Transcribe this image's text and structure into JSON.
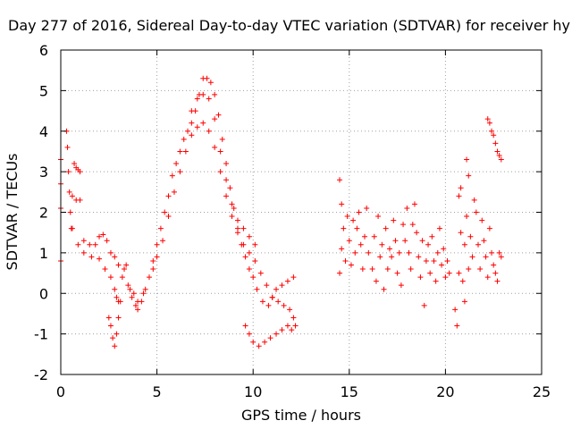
{
  "chart_data": {
    "type": "scatter",
    "title": "Day 277 of 2016, Sidereal Day-to-day VTEC variation (SDTVAR) for receiver hy",
    "xlabel": "GPS time / hours",
    "ylabel": "SDTVAR / TECUs",
    "xlim": [
      0,
      25
    ],
    "ylim": [
      -2,
      6
    ],
    "xticks": [
      "0",
      "5",
      "10",
      "15",
      "20",
      "25"
    ],
    "yticks": [
      "-2",
      "-1",
      "0",
      "1",
      "2",
      "3",
      "4",
      "5",
      "6"
    ],
    "grid": true,
    "marker": "+",
    "color": "#ff0000",
    "series": [
      {
        "points": [
          [
            0.0,
            3.3
          ],
          [
            0.0,
            2.7
          ],
          [
            0.0,
            2.1
          ],
          [
            0.0,
            0.8
          ],
          [
            0.3,
            4.0
          ],
          [
            0.35,
            3.6
          ],
          [
            0.4,
            3.0
          ],
          [
            0.45,
            2.5
          ],
          [
            0.5,
            2.0
          ],
          [
            0.55,
            1.6
          ],
          [
            0.7,
            3.2
          ],
          [
            0.8,
            3.1
          ],
          [
            0.9,
            3.05
          ],
          [
            1.0,
            3.0
          ],
          [
            0.6,
            2.4
          ],
          [
            0.8,
            2.3
          ],
          [
            1.0,
            2.3
          ],
          [
            1.2,
            1.3
          ],
          [
            1.5,
            1.2
          ],
          [
            1.8,
            1.2
          ],
          [
            2.0,
            1.4
          ],
          [
            2.2,
            1.45
          ],
          [
            2.4,
            1.3
          ],
          [
            2.6,
            1.0
          ],
          [
            2.8,
            0.9
          ],
          [
            3.0,
            0.7
          ],
          [
            0.6,
            1.6
          ],
          [
            0.9,
            1.2
          ],
          [
            1.2,
            1.0
          ],
          [
            1.6,
            0.9
          ],
          [
            2.0,
            0.85
          ],
          [
            2.3,
            0.6
          ],
          [
            2.6,
            0.4
          ],
          [
            2.8,
            0.1
          ],
          [
            2.9,
            -0.1
          ],
          [
            3.0,
            -0.2
          ],
          [
            2.5,
            -0.6
          ],
          [
            2.6,
            -0.8
          ],
          [
            2.7,
            -1.1
          ],
          [
            2.8,
            -1.3
          ],
          [
            2.9,
            -1.0
          ],
          [
            3.0,
            -0.6
          ],
          [
            3.1,
            -0.2
          ],
          [
            3.2,
            0.4
          ],
          [
            3.3,
            0.6
          ],
          [
            3.4,
            0.7
          ],
          [
            3.5,
            0.2
          ],
          [
            3.7,
            -0.1
          ],
          [
            3.9,
            -0.3
          ],
          [
            4.0,
            -0.4
          ],
          [
            4.2,
            -0.2
          ],
          [
            4.4,
            0.1
          ],
          [
            3.6,
            0.1
          ],
          [
            3.8,
            0.0
          ],
          [
            4.0,
            -0.2
          ],
          [
            4.3,
            0.0
          ],
          [
            4.6,
            0.4
          ],
          [
            4.8,
            0.8
          ],
          [
            5.0,
            1.2
          ],
          [
            5.2,
            1.6
          ],
          [
            5.4,
            2.0
          ],
          [
            5.6,
            2.4
          ],
          [
            5.8,
            2.9
          ],
          [
            6.0,
            3.2
          ],
          [
            6.2,
            3.5
          ],
          [
            6.4,
            3.8
          ],
          [
            6.6,
            4.0
          ],
          [
            6.8,
            4.2
          ],
          [
            7.0,
            4.5
          ],
          [
            7.2,
            4.9
          ],
          [
            7.4,
            5.3
          ],
          [
            7.6,
            5.3
          ],
          [
            7.8,
            5.2
          ],
          [
            8.0,
            4.9
          ],
          [
            8.2,
            4.4
          ],
          [
            8.4,
            3.8
          ],
          [
            8.6,
            3.2
          ],
          [
            8.8,
            2.6
          ],
          [
            9.0,
            2.1
          ],
          [
            9.2,
            1.6
          ],
          [
            9.4,
            1.2
          ],
          [
            9.6,
            0.9
          ],
          [
            9.8,
            0.6
          ],
          [
            10.0,
            0.4
          ],
          [
            10.2,
            0.1
          ],
          [
            10.5,
            -0.2
          ],
          [
            10.8,
            -0.3
          ],
          [
            11.0,
            -0.1
          ],
          [
            11.2,
            0.1
          ],
          [
            11.5,
            0.2
          ],
          [
            11.8,
            0.3
          ],
          [
            12.1,
            0.4
          ],
          [
            4.8,
            0.6
          ],
          [
            5.0,
            0.9
          ],
          [
            5.3,
            1.3
          ],
          [
            5.6,
            1.9
          ],
          [
            5.9,
            2.5
          ],
          [
            6.2,
            3.0
          ],
          [
            6.5,
            3.5
          ],
          [
            6.8,
            3.9
          ],
          [
            7.1,
            4.1
          ],
          [
            7.4,
            4.2
          ],
          [
            7.7,
            4.0
          ],
          [
            8.0,
            3.6
          ],
          [
            8.3,
            3.0
          ],
          [
            8.6,
            2.4
          ],
          [
            8.9,
            1.9
          ],
          [
            9.2,
            1.5
          ],
          [
            9.5,
            1.2
          ],
          [
            9.8,
            1.0
          ],
          [
            10.1,
            0.8
          ],
          [
            10.4,
            0.5
          ],
          [
            10.7,
            0.2
          ],
          [
            11.0,
            -0.1
          ],
          [
            11.3,
            -0.2
          ],
          [
            11.6,
            -0.3
          ],
          [
            11.9,
            -0.4
          ],
          [
            12.1,
            -0.6
          ],
          [
            12.2,
            -0.8
          ],
          [
            6.8,
            4.5
          ],
          [
            7.1,
            4.8
          ],
          [
            7.4,
            4.9
          ],
          [
            7.7,
            4.8
          ],
          [
            8.0,
            4.3
          ],
          [
            8.3,
            3.5
          ],
          [
            8.6,
            2.8
          ],
          [
            8.9,
            2.2
          ],
          [
            9.2,
            1.8
          ],
          [
            9.5,
            1.6
          ],
          [
            9.8,
            1.4
          ],
          [
            10.1,
            1.2
          ],
          [
            9.6,
            -0.8
          ],
          [
            9.8,
            -1.0
          ],
          [
            10.0,
            -1.2
          ],
          [
            10.3,
            -1.3
          ],
          [
            10.6,
            -1.2
          ],
          [
            10.9,
            -1.1
          ],
          [
            11.2,
            -1.0
          ],
          [
            11.5,
            -0.9
          ],
          [
            11.8,
            -0.8
          ],
          [
            12.0,
            -0.9
          ],
          [
            14.5,
            2.8
          ],
          [
            14.5,
            0.5
          ],
          [
            14.6,
            2.2
          ],
          [
            14.6,
            1.1
          ],
          [
            14.7,
            1.6
          ],
          [
            14.8,
            0.8
          ],
          [
            14.9,
            1.9
          ],
          [
            15.0,
            1.3
          ],
          [
            15.1,
            0.7
          ],
          [
            15.2,
            1.8
          ],
          [
            15.3,
            1.0
          ],
          [
            15.4,
            1.6
          ],
          [
            15.5,
            2.0
          ],
          [
            15.6,
            1.2
          ],
          [
            15.7,
            0.6
          ],
          [
            15.8,
            1.4
          ],
          [
            15.9,
            2.1
          ],
          [
            16.0,
            1.0
          ],
          [
            16.2,
            0.6
          ],
          [
            16.3,
            1.4
          ],
          [
            16.4,
            0.3
          ],
          [
            16.5,
            1.9
          ],
          [
            16.6,
            0.9
          ],
          [
            16.7,
            1.2
          ],
          [
            16.8,
            0.1
          ],
          [
            16.9,
            1.6
          ],
          [
            17.0,
            0.6
          ],
          [
            17.1,
            1.1
          ],
          [
            17.2,
            0.9
          ],
          [
            17.3,
            1.8
          ],
          [
            17.4,
            1.3
          ],
          [
            17.5,
            0.5
          ],
          [
            17.6,
            1.0
          ],
          [
            17.7,
            0.2
          ],
          [
            17.8,
            1.7
          ],
          [
            17.9,
            1.3
          ],
          [
            18.0,
            2.1
          ],
          [
            18.1,
            1.0
          ],
          [
            18.2,
            0.6
          ],
          [
            18.3,
            1.7
          ],
          [
            18.4,
            2.2
          ],
          [
            18.5,
            1.5
          ],
          [
            18.6,
            0.9
          ],
          [
            18.7,
            0.4
          ],
          [
            18.8,
            1.3
          ],
          [
            18.9,
            -0.3
          ],
          [
            19.0,
            0.8
          ],
          [
            19.1,
            1.2
          ],
          [
            19.2,
            0.5
          ],
          [
            19.3,
            1.4
          ],
          [
            19.4,
            0.8
          ],
          [
            19.5,
            0.3
          ],
          [
            19.6,
            1.0
          ],
          [
            19.7,
            1.6
          ],
          [
            19.8,
            0.7
          ],
          [
            19.9,
            1.1
          ],
          [
            20.0,
            0.4
          ],
          [
            20.1,
            0.8
          ],
          [
            20.2,
            0.5
          ],
          [
            20.5,
            -0.4
          ],
          [
            20.6,
            -0.8
          ],
          [
            20.7,
            0.5
          ],
          [
            20.7,
            2.4
          ],
          [
            20.8,
            1.5
          ],
          [
            20.8,
            2.6
          ],
          [
            20.9,
            0.3
          ],
          [
            21.0,
            1.2
          ],
          [
            21.0,
            -0.2
          ],
          [
            21.1,
            1.9
          ],
          [
            21.1,
            3.3
          ],
          [
            21.2,
            2.9
          ],
          [
            21.2,
            0.6
          ],
          [
            21.3,
            1.4
          ],
          [
            21.4,
            0.9
          ],
          [
            21.5,
            2.3
          ],
          [
            21.6,
            2.0
          ],
          [
            21.7,
            1.2
          ],
          [
            21.8,
            0.6
          ],
          [
            21.9,
            1.8
          ],
          [
            22.0,
            1.3
          ],
          [
            22.1,
            0.9
          ],
          [
            22.2,
            0.4
          ],
          [
            22.3,
            1.6
          ],
          [
            22.4,
            1.0
          ],
          [
            22.5,
            0.7
          ],
          [
            22.6,
            0.5
          ],
          [
            22.7,
            0.3
          ],
          [
            22.8,
            1.0
          ],
          [
            22.9,
            0.9
          ],
          [
            22.2,
            4.3
          ],
          [
            22.3,
            4.2
          ],
          [
            22.4,
            4.0
          ],
          [
            22.5,
            3.9
          ],
          [
            22.6,
            3.7
          ],
          [
            22.7,
            3.5
          ],
          [
            22.8,
            3.4
          ],
          [
            22.9,
            3.3
          ]
        ]
      }
    ]
  }
}
